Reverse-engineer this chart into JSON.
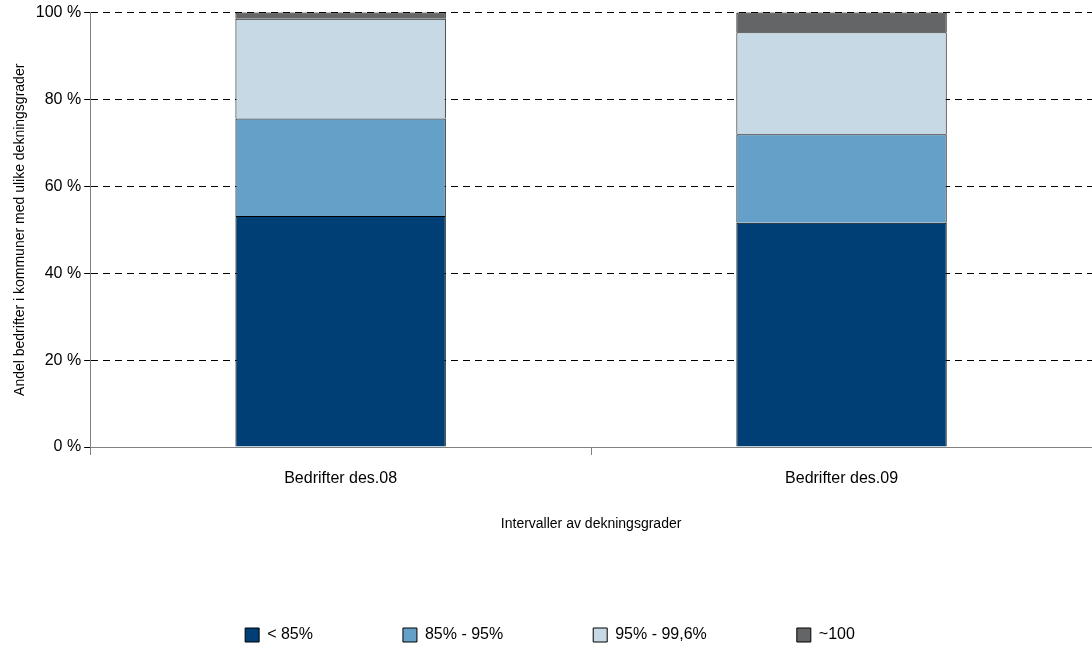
{
  "chart_data": {
    "type": "bar",
    "stacked": true,
    "xlabel": "Intervaller av dekningsgrader",
    "ylabel": "Andel bedrifter i kommuner med ulike dekningsgrader",
    "categories": [
      "Bedrifter des.08",
      "Bedrifter des.09"
    ],
    "series": [
      {
        "name": "< 85%",
        "color": "#003f75",
        "values": [
          53.2,
          51.6
        ]
      },
      {
        "name": "85% - 95%",
        "color": "#65a0c8",
        "values": [
          22.4,
          20.4
        ]
      },
      {
        "name": "95% - 99,6%",
        "color": "#c6d9e4",
        "values": [
          23.0,
          23.5
        ]
      },
      {
        "name": "~100",
        "color": "#646567",
        "values": [
          1.4,
          4.5
        ]
      }
    ],
    "ylim": [
      0,
      100
    ],
    "yticks": [
      {
        "value": 0,
        "label": "0 %"
      },
      {
        "value": 20,
        "label": "20 %"
      },
      {
        "value": 40,
        "label": "40 %"
      },
      {
        "value": 60,
        "label": "60 %"
      },
      {
        "value": 80,
        "label": "80 %"
      },
      {
        "value": 100,
        "label": "100 %"
      }
    ],
    "grid": "y",
    "legend": "bottom"
  }
}
